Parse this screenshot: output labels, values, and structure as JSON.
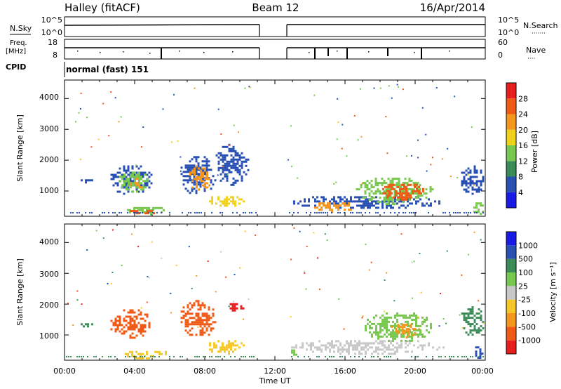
{
  "header": {
    "station": "Halley (fitACF)",
    "beam": "Beam 12",
    "date": "16/Apr/2014"
  },
  "top_panels": {
    "nsky_label": "N.Sky",
    "nsky_ticks": [
      "10^5",
      "10^0"
    ],
    "nsearch_label": "N.Search",
    "nsearch_ticks": [
      "10^5",
      "10^0"
    ],
    "freq_label": "Freq.",
    "freq_unit": "[MHz]",
    "freq_ticks": [
      "18",
      "8"
    ],
    "nave_label": "Nave",
    "nave_ticks": [
      "60",
      "0"
    ],
    "cpid_label": "CPID",
    "cpid_value": "normal (fast) 151"
  },
  "time_axis": {
    "label": "Time UT",
    "ticks": [
      "00:00",
      "04:00",
      "08:00",
      "12:00",
      "16:00",
      "20:00",
      "00:00"
    ]
  },
  "chart_data": [
    {
      "type": "heatmap",
      "name": "power",
      "ylabel": "Slant Range [km]",
      "yticks": [
        "1000",
        "2000",
        "3000",
        "4000"
      ],
      "ylim": [
        180,
        4600
      ],
      "xlim_hours": [
        0,
        24
      ],
      "data_gap_hours": [
        11.0,
        12.7
      ],
      "colorbar_label": "Power [dB]",
      "colorbar_ticks": [
        "28",
        "24",
        "20",
        "16",
        "12",
        "8",
        "4"
      ],
      "colorbar_colors": [
        "#1a1ae6",
        "#2850b4",
        "#3c8c5a",
        "#78c850",
        "#f0d21e",
        "#f5961e",
        "#f05a14",
        "#e61e1e"
      ],
      "blobs": [
        {
          "t0": 0.8,
          "t1": 1.6,
          "r0": 1300,
          "r1": 1450,
          "color": "#2850b4"
        },
        {
          "t0": 2.5,
          "t1": 5.0,
          "r0": 900,
          "r1": 1900,
          "color": "#2850b4"
        },
        {
          "t0": 3.0,
          "t1": 4.8,
          "r0": 1000,
          "r1": 1700,
          "color": "#78c850"
        },
        {
          "t0": 3.6,
          "t1": 4.5,
          "r0": 1100,
          "r1": 1500,
          "color": "#f5961e"
        },
        {
          "t0": 3.2,
          "t1": 6.0,
          "r0": 260,
          "r1": 550,
          "color": "#78c850"
        },
        {
          "t0": 3.6,
          "t1": 5.8,
          "r0": 300,
          "r1": 450,
          "color": "#f05a14"
        },
        {
          "t0": 6.5,
          "t1": 8.6,
          "r0": 900,
          "r1": 2200,
          "color": "#2850b4"
        },
        {
          "t0": 7.0,
          "t1": 8.3,
          "r0": 1000,
          "r1": 1900,
          "color": "#f5961e"
        },
        {
          "t0": 8.0,
          "t1": 10.2,
          "r0": 500,
          "r1": 900,
          "color": "#f0d21e"
        },
        {
          "t0": 8.5,
          "t1": 10.5,
          "r0": 1200,
          "r1": 2600,
          "color": "#2850b4"
        },
        {
          "t0": 12.8,
          "t1": 21.6,
          "r0": 450,
          "r1": 900,
          "color": "#2850b4"
        },
        {
          "t0": 14.0,
          "t1": 16.5,
          "r0": 350,
          "r1": 700,
          "color": "#f5961e"
        },
        {
          "t0": 16.5,
          "t1": 21.0,
          "r0": 600,
          "r1": 1500,
          "color": "#78c850"
        },
        {
          "t0": 18.0,
          "t1": 20.5,
          "r0": 700,
          "r1": 1300,
          "color": "#f05a14"
        },
        {
          "t0": 22.5,
          "t1": 23.9,
          "r0": 900,
          "r1": 1900,
          "color": "#2850b4"
        },
        {
          "t0": 23.2,
          "t1": 23.9,
          "r0": 250,
          "r1": 700,
          "color": "#78c850"
        }
      ]
    },
    {
      "type": "heatmap",
      "name": "velocity",
      "ylabel": "Slant Range [km]",
      "yticks": [
        "1000",
        "2000",
        "3000",
        "4000"
      ],
      "ylim": [
        180,
        4600
      ],
      "xlim_hours": [
        0,
        24
      ],
      "data_gap_hours": [
        11.0,
        12.7
      ],
      "colorbar_label": "Velocity [m s⁻¹]",
      "colorbar_ticks": [
        "1000",
        "500",
        "100",
        "25",
        "-25",
        "-100",
        "-500",
        "-1000"
      ],
      "colorbar_colors": [
        "#e61e1e",
        "#f05a14",
        "#f5961e",
        "#f5c828",
        "#c8c8c8",
        "#78c850",
        "#3c8c5a",
        "#2850b4",
        "#1a1ae6"
      ],
      "blobs": [
        {
          "t0": 0.8,
          "t1": 1.6,
          "r0": 1300,
          "r1": 1450,
          "color": "#3c8c5a"
        },
        {
          "t0": 2.5,
          "t1": 5.0,
          "r0": 900,
          "r1": 1900,
          "color": "#f05a14"
        },
        {
          "t0": 3.2,
          "t1": 6.0,
          "r0": 260,
          "r1": 550,
          "color": "#f5c828"
        },
        {
          "t0": 6.5,
          "t1": 8.6,
          "r0": 900,
          "r1": 2200,
          "color": "#f05a14"
        },
        {
          "t0": 8.0,
          "t1": 10.2,
          "r0": 400,
          "r1": 900,
          "color": "#f5c828"
        },
        {
          "t0": 9.3,
          "t1": 10.3,
          "r0": 1800,
          "r1": 2100,
          "color": "#e61e1e"
        },
        {
          "t0": 12.8,
          "t1": 21.6,
          "r0": 400,
          "r1": 900,
          "color": "#c8c8c8"
        },
        {
          "t0": 17.0,
          "t1": 21.0,
          "r0": 800,
          "r1": 1800,
          "color": "#78c850"
        },
        {
          "t0": 18.5,
          "t1": 20.0,
          "r0": 900,
          "r1": 1500,
          "color": "#f5961e"
        },
        {
          "t0": 12.8,
          "t1": 13.3,
          "r0": 350,
          "r1": 600,
          "color": "#78c850"
        },
        {
          "t0": 22.5,
          "t1": 23.9,
          "r0": 900,
          "r1": 2000,
          "color": "#3c8c5a"
        },
        {
          "t0": 23.3,
          "t1": 23.9,
          "r0": 250,
          "r1": 700,
          "color": "#2850b4"
        }
      ]
    }
  ]
}
